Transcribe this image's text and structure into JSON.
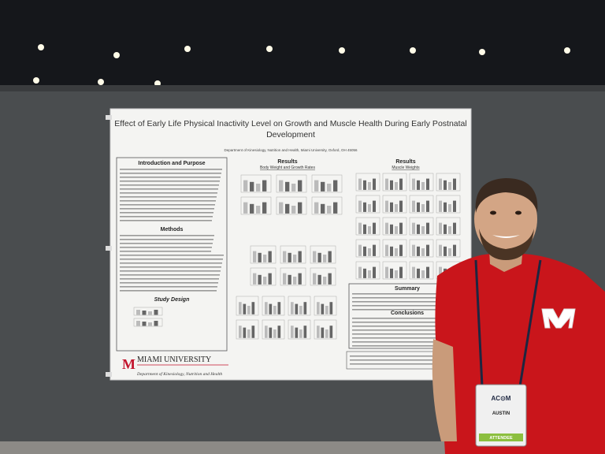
{
  "poster": {
    "title_line1": "Effect of Early Life Physical Inactivity Level on Growth and Muscle Health During Early Postnatal",
    "title_line2": "Development",
    "affiliation": "Department of Kinesiology, Nutrition and Health, Miami University, Oxford, OH 45056",
    "sections": {
      "intro": "Introduction and Purpose",
      "methods": "Methods",
      "design": "Study Design",
      "results_left": "Results",
      "results_left_sub": "Body Weight and Growth Rates",
      "results_right": "Results",
      "results_right_sub": "Muscle Weights",
      "summary": "Summary",
      "conclusions": "Conclusions"
    },
    "logo": {
      "name": "MIAMI UNIVERSITY",
      "department": "Department of Kinesiology, Nutrition and Health"
    }
  },
  "badge": {
    "name": "AUSTIN",
    "role": "ATTENDEE"
  }
}
